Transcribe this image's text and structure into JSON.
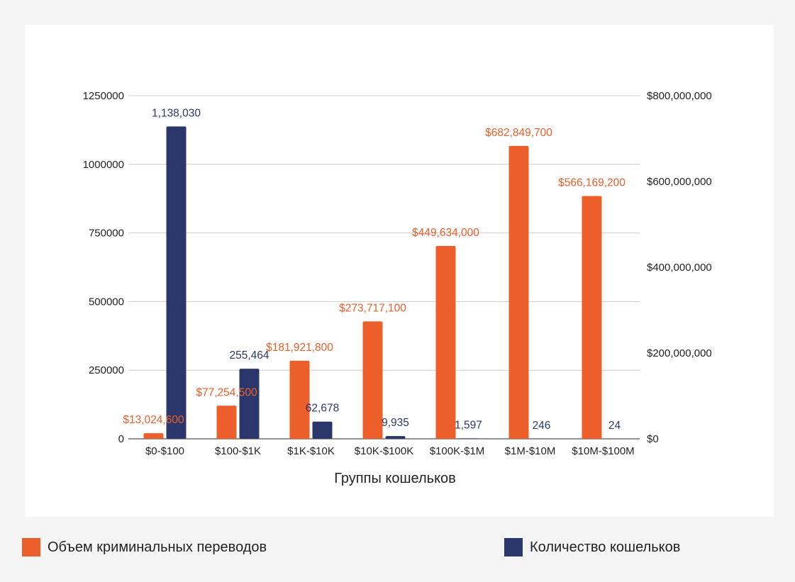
{
  "chart_data": {
    "type": "bar",
    "xlabel": "Группы кошельков",
    "categories": [
      "$0-$100",
      "$100-$1K",
      "$1K-$10K",
      "$10K-$100K",
      "$100K-$1M",
      "$1M-$10M",
      "$10M-$100M"
    ],
    "series": [
      {
        "name": "Объем криминальных переводов",
        "axis": "right",
        "color": "#ec5f2b",
        "values": [
          13024600,
          77254500,
          181921800,
          273717100,
          449634000,
          682849700,
          566169200
        ],
        "labels": [
          "$13,024,600",
          "$77,254,500",
          "$181,921,800",
          "$273,717,100",
          "$449,634,000",
          "$682,849,700",
          "$566,169,200"
        ]
      },
      {
        "name": "Количество кошельков",
        "axis": "left",
        "color": "#2b376b",
        "values": [
          1138030,
          255464,
          62678,
          9935,
          1597,
          246,
          24
        ],
        "labels": [
          "1,138,030",
          "255,464",
          "62,678",
          "9,935",
          "1,597",
          "246",
          "24"
        ]
      }
    ],
    "left_axis": {
      "ylim": [
        0,
        1250000
      ],
      "ticks": [
        0,
        250000,
        500000,
        750000,
        1000000,
        1250000
      ],
      "tick_labels": [
        "0",
        "250000",
        "500000",
        "750000",
        "1000000",
        "1250000"
      ]
    },
    "right_axis": {
      "ylim": [
        0,
        800000000
      ],
      "ticks": [
        0,
        200000000,
        400000000,
        600000000,
        800000000
      ],
      "tick_labels": [
        "$0",
        "$200,000,000",
        "$400,000,000",
        "$600,000,000",
        "$800,000,000"
      ]
    },
    "grid": true,
    "legend_position": "bottom"
  },
  "legend": {
    "volume_label": "Объем криминальных переводов",
    "count_label": "Количество кошельков"
  }
}
